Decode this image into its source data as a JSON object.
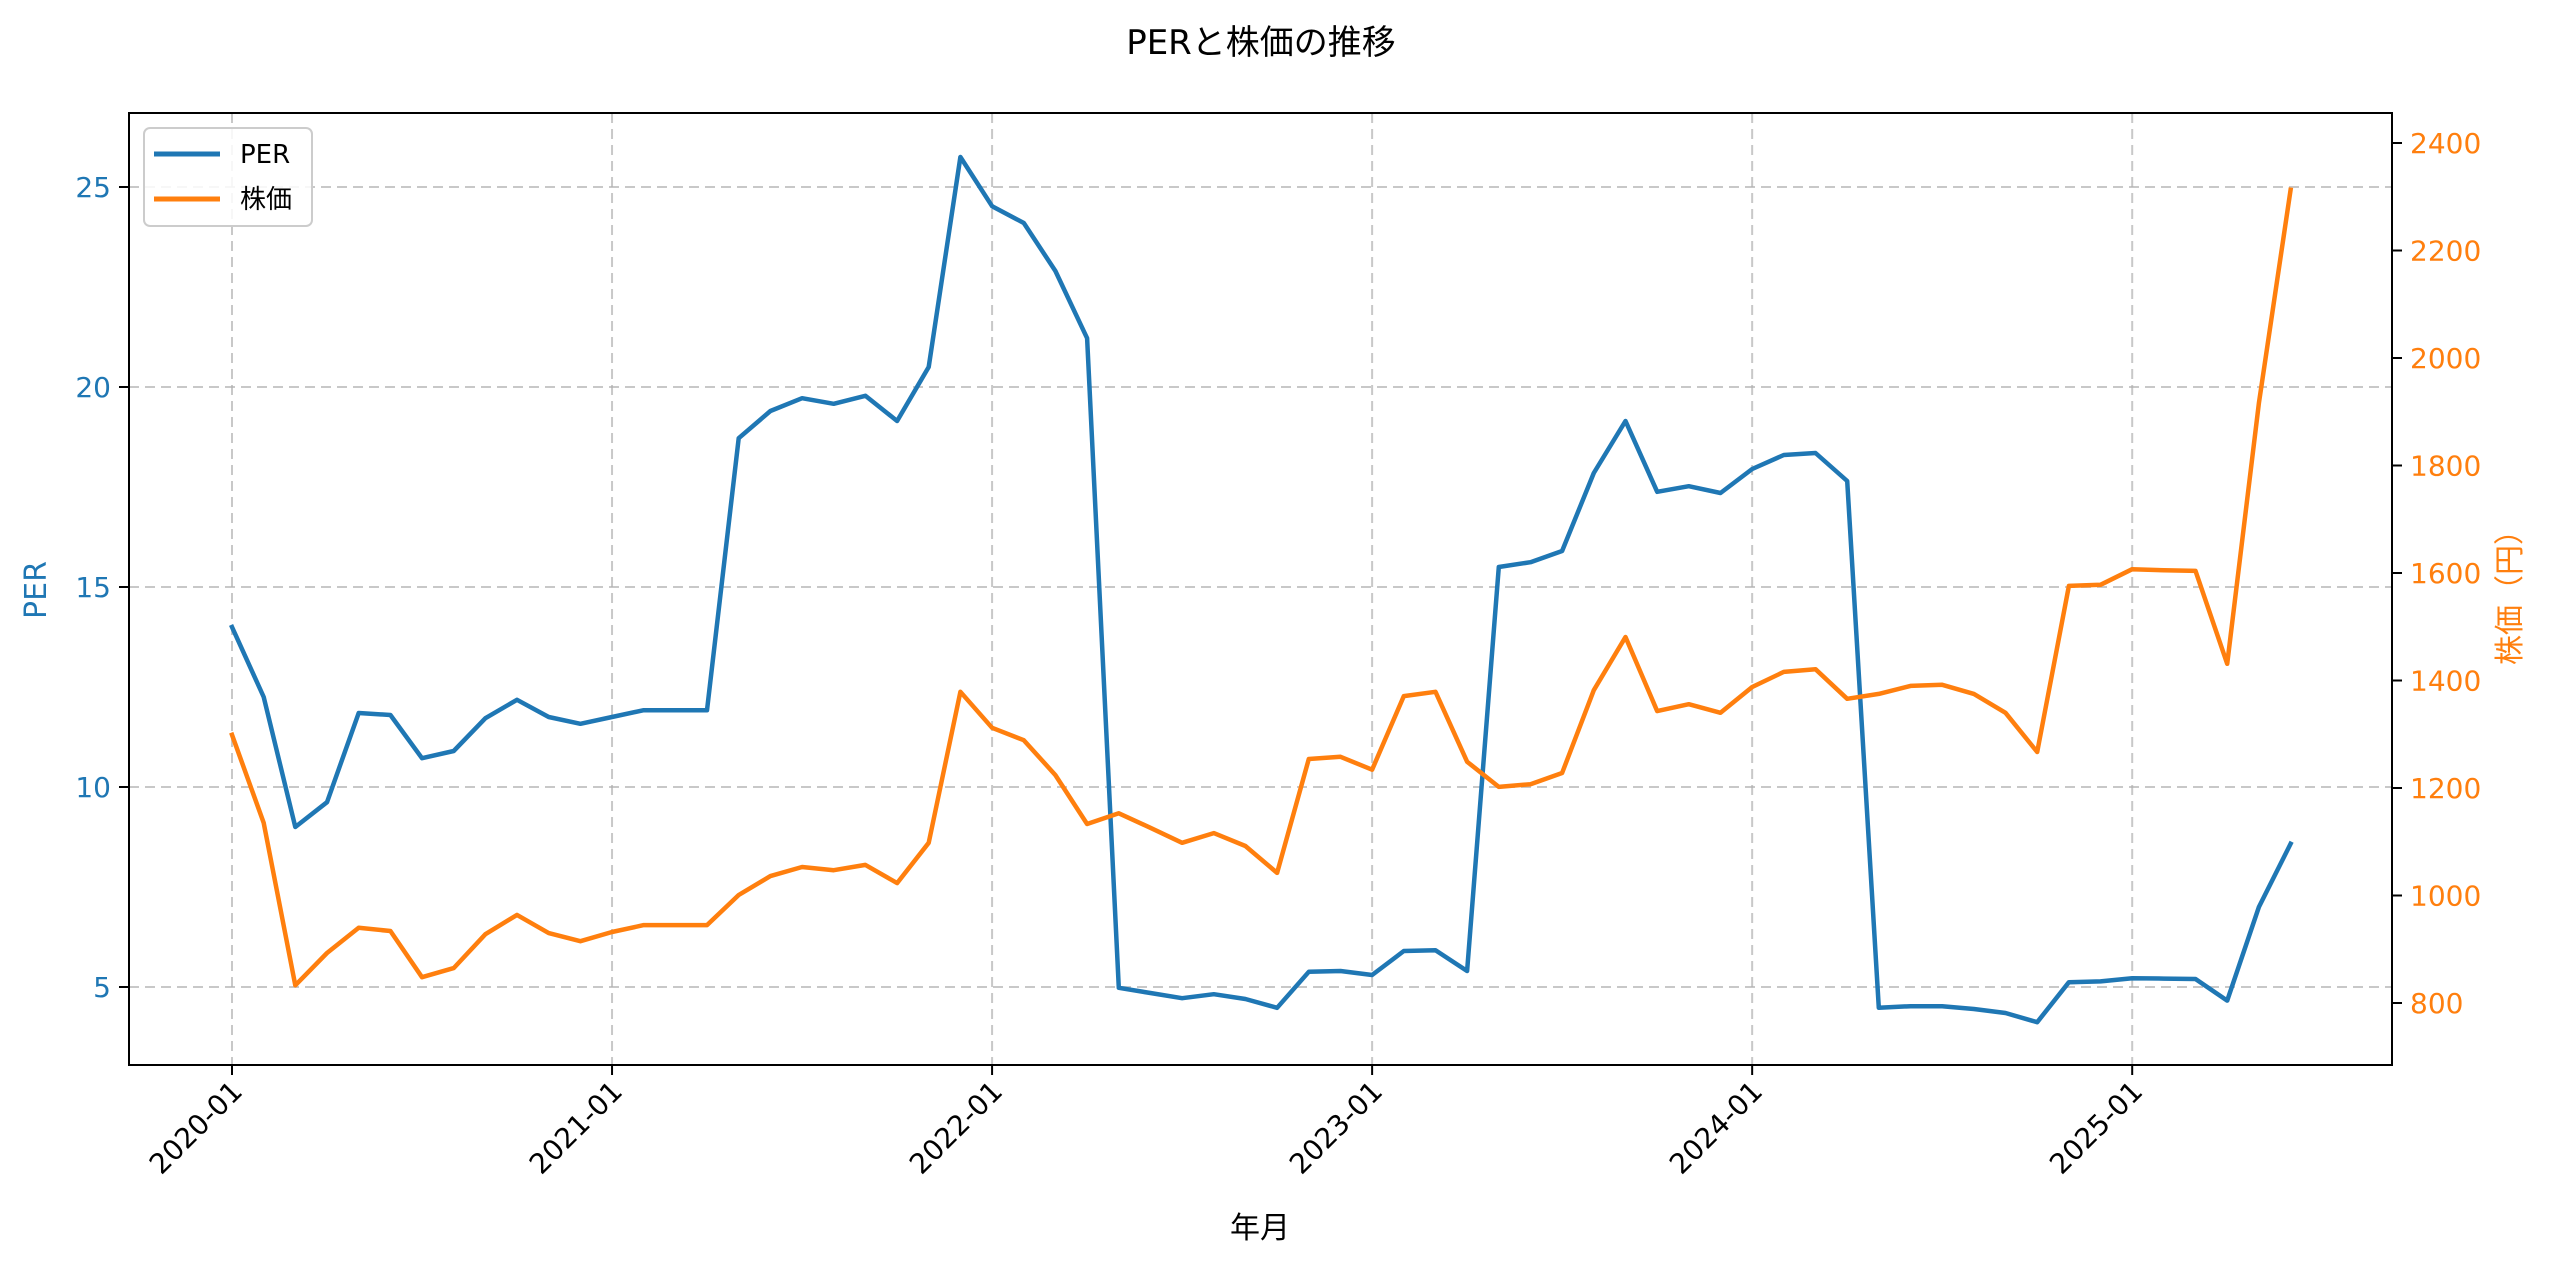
{
  "chart_data": {
    "type": "line",
    "title": "PERと株価の推移",
    "xlabel": "年月",
    "ylabel": "PER",
    "ylabel_right": "株価（円）",
    "x_tick_labels": [
      "2020-01",
      "2021-01",
      "2022-01",
      "2023-01",
      "2024-01",
      "2025-01"
    ],
    "y_ticks_left": [
      5,
      10,
      15,
      20,
      25
    ],
    "y_ticks_right": [
      800,
      1000,
      1200,
      1400,
      1600,
      1800,
      2000,
      2200,
      2400
    ],
    "ylim_left": [
      3.0,
      26.8
    ],
    "ylim_right": [
      690,
      2460
    ],
    "grid": true,
    "legend_position": "upper left",
    "colors": {
      "PER": "#1f77b4",
      "株価": "#ff7f0e",
      "left_axis": "#1f77b4",
      "right_axis": "#ff7f0e"
    },
    "x": [
      "2020-01",
      "2020-02",
      "2020-03",
      "2020-04",
      "2020-05",
      "2020-06",
      "2020-07",
      "2020-08",
      "2020-09",
      "2020-10",
      "2020-11",
      "2020-12",
      "2021-01",
      "2021-02",
      "2021-03",
      "2021-04",
      "2021-05",
      "2021-06",
      "2021-07",
      "2021-08",
      "2021-09",
      "2021-10",
      "2021-11",
      "2021-12",
      "2022-01",
      "2022-02",
      "2022-03",
      "2022-04",
      "2022-05",
      "2022-06",
      "2022-07",
      "2022-08",
      "2022-09",
      "2022-10",
      "2022-11",
      "2022-12",
      "2023-01",
      "2023-02",
      "2023-03",
      "2023-04",
      "2023-05",
      "2023-06",
      "2023-07",
      "2023-08",
      "2023-09",
      "2023-10",
      "2023-11",
      "2023-12",
      "2024-01",
      "2024-02",
      "2024-03",
      "2024-04",
      "2024-05",
      "2024-06",
      "2024-07",
      "2024-08",
      "2024-09",
      "2024-10",
      "2024-11",
      "2024-12",
      "2025-01",
      "2025-02",
      "2025-03",
      "2025-04",
      "2025-05",
      "2025-06"
    ],
    "series": [
      {
        "name": "PER",
        "axis": "left",
        "values": [
          14.0,
          12.25,
          9.0,
          9.62,
          11.85,
          11.8,
          10.72,
          10.9,
          11.72,
          12.18,
          11.75,
          11.58,
          11.75,
          11.92,
          11.92,
          11.92,
          18.72,
          19.4,
          19.72,
          19.58,
          19.78,
          19.15,
          20.5,
          25.75,
          24.52,
          24.1,
          22.9,
          21.22,
          4.98,
          4.85,
          4.72,
          4.82,
          4.7,
          4.48,
          5.38,
          5.4,
          5.3,
          5.9,
          5.92,
          5.4,
          15.5,
          15.62,
          15.9,
          17.85,
          19.15,
          17.38,
          17.52,
          17.35,
          17.95,
          18.3,
          18.35,
          17.65,
          4.48,
          4.52,
          4.52,
          4.45,
          4.35,
          4.12,
          5.12,
          5.14,
          5.22,
          5.21,
          5.2,
          4.66,
          7.0,
          8.58
        ]
      },
      {
        "name": "株価",
        "axis": "right",
        "values": [
          1299,
          1135,
          833,
          893,
          940,
          934,
          848,
          865,
          928,
          964,
          930,
          915,
          932,
          945,
          945,
          945,
          1001,
          1036,
          1053,
          1047,
          1057,
          1023,
          1098,
          1379,
          1312,
          1289,
          1224,
          1133,
          1153,
          1126,
          1098,
          1116,
          1092,
          1042,
          1254,
          1258,
          1234,
          1371,
          1379,
          1249,
          1202,
          1207,
          1228,
          1382,
          1481,
          1343,
          1356,
          1340,
          1388,
          1416,
          1421,
          1366,
          1375,
          1390,
          1392,
          1375,
          1340,
          1267,
          1576,
          1578,
          1607,
          1605,
          1604,
          1431,
          1916,
          2313
        ]
      }
    ]
  },
  "legend": {
    "items": [
      {
        "label": "PER",
        "color": "#1f77b4"
      },
      {
        "label": "株価",
        "color": "#ff7f0e"
      }
    ]
  }
}
